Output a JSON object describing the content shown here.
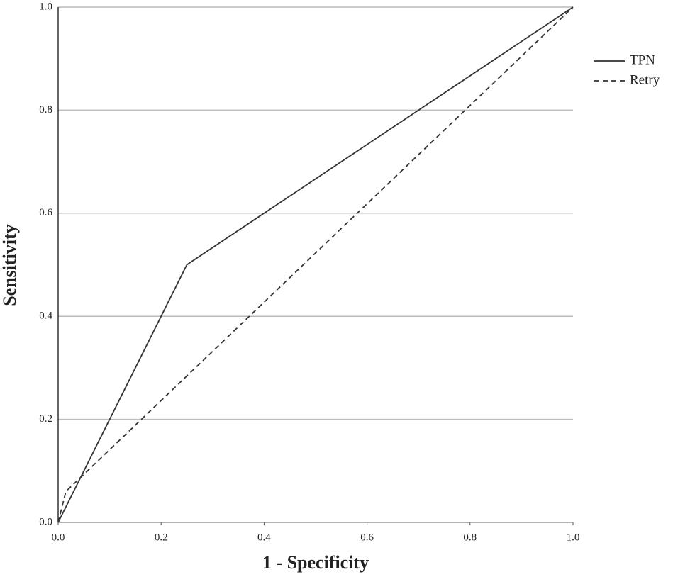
{
  "chart_data": {
    "type": "line",
    "x_label": "1 - Specificity",
    "y_label": "Sensitivity",
    "series": [
      {
        "name": "TPN",
        "color": "#333333",
        "dash": "solid",
        "x": [
          0,
          0.25,
          1
        ],
        "values": [
          0,
          0.5,
          1
        ]
      },
      {
        "name": "Retry",
        "color": "#333333",
        "dash": "dashed",
        "x": [
          0,
          0.015,
          1
        ],
        "values": [
          0,
          0.06,
          1
        ]
      }
    ],
    "xlim": [
      0,
      1
    ],
    "ylim": [
      0,
      1
    ],
    "xticks": [
      {
        "value": 0,
        "label": "0.0"
      },
      0.2,
      0.4,
      0.6,
      0.8,
      {
        "value": 1,
        "label": "1.0"
      }
    ],
    "yticks": [
      {
        "value": 0,
        "label": "0.0"
      },
      0.2,
      0.4,
      0.6,
      0.8,
      {
        "value": 1,
        "label": "1.0"
      }
    ],
    "grid": true,
    "legend": "right"
  }
}
